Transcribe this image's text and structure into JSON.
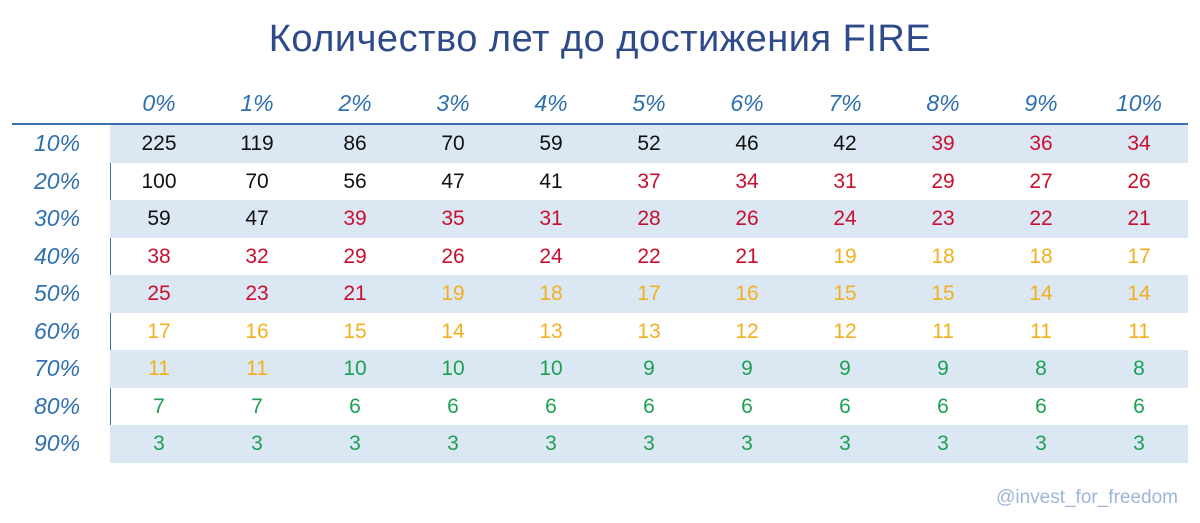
{
  "chart_data": {
    "type": "table",
    "title": "Количество лет до достижения FIRE",
    "columns": [
      "0%",
      "1%",
      "2%",
      "3%",
      "4%",
      "5%",
      "6%",
      "7%",
      "8%",
      "9%",
      "10%"
    ],
    "rows": [
      {
        "label": "10%",
        "values": [
          225,
          119,
          86,
          70,
          59,
          52,
          46,
          42,
          39,
          36,
          34
        ]
      },
      {
        "label": "20%",
        "values": [
          100,
          70,
          56,
          47,
          41,
          37,
          34,
          31,
          29,
          27,
          26
        ]
      },
      {
        "label": "30%",
        "values": [
          59,
          47,
          39,
          35,
          31,
          28,
          26,
          24,
          23,
          22,
          21
        ]
      },
      {
        "label": "40%",
        "values": [
          38,
          32,
          29,
          26,
          24,
          22,
          21,
          19,
          18,
          18,
          17
        ]
      },
      {
        "label": "50%",
        "values": [
          25,
          23,
          21,
          19,
          18,
          17,
          16,
          15,
          15,
          14,
          14
        ]
      },
      {
        "label": "60%",
        "values": [
          17,
          16,
          15,
          14,
          13,
          13,
          12,
          12,
          11,
          11,
          11
        ]
      },
      {
        "label": "70%",
        "values": [
          11,
          11,
          10,
          10,
          10,
          9,
          9,
          9,
          9,
          8,
          8
        ]
      },
      {
        "label": "80%",
        "values": [
          7,
          7,
          6,
          6,
          6,
          6,
          6,
          6,
          6,
          6,
          6
        ]
      },
      {
        "label": "90%",
        "values": [
          3,
          3,
          3,
          3,
          3,
          3,
          3,
          3,
          3,
          3,
          3
        ]
      }
    ],
    "color_bands": [
      {
        "min": 40,
        "color": "#111111"
      },
      {
        "min": 20,
        "color": "#C8102E"
      },
      {
        "min": 11,
        "color": "#F2B01E"
      },
      {
        "min": 0,
        "color": "#1BA152"
      }
    ],
    "colors": {
      "header_text": "#2F6FB0",
      "title_text": "#2F4A8A",
      "row_shade": "#DCE7F4",
      "grid_line": "#3B6FB0"
    }
  },
  "credit": "@invest_for_freedom"
}
